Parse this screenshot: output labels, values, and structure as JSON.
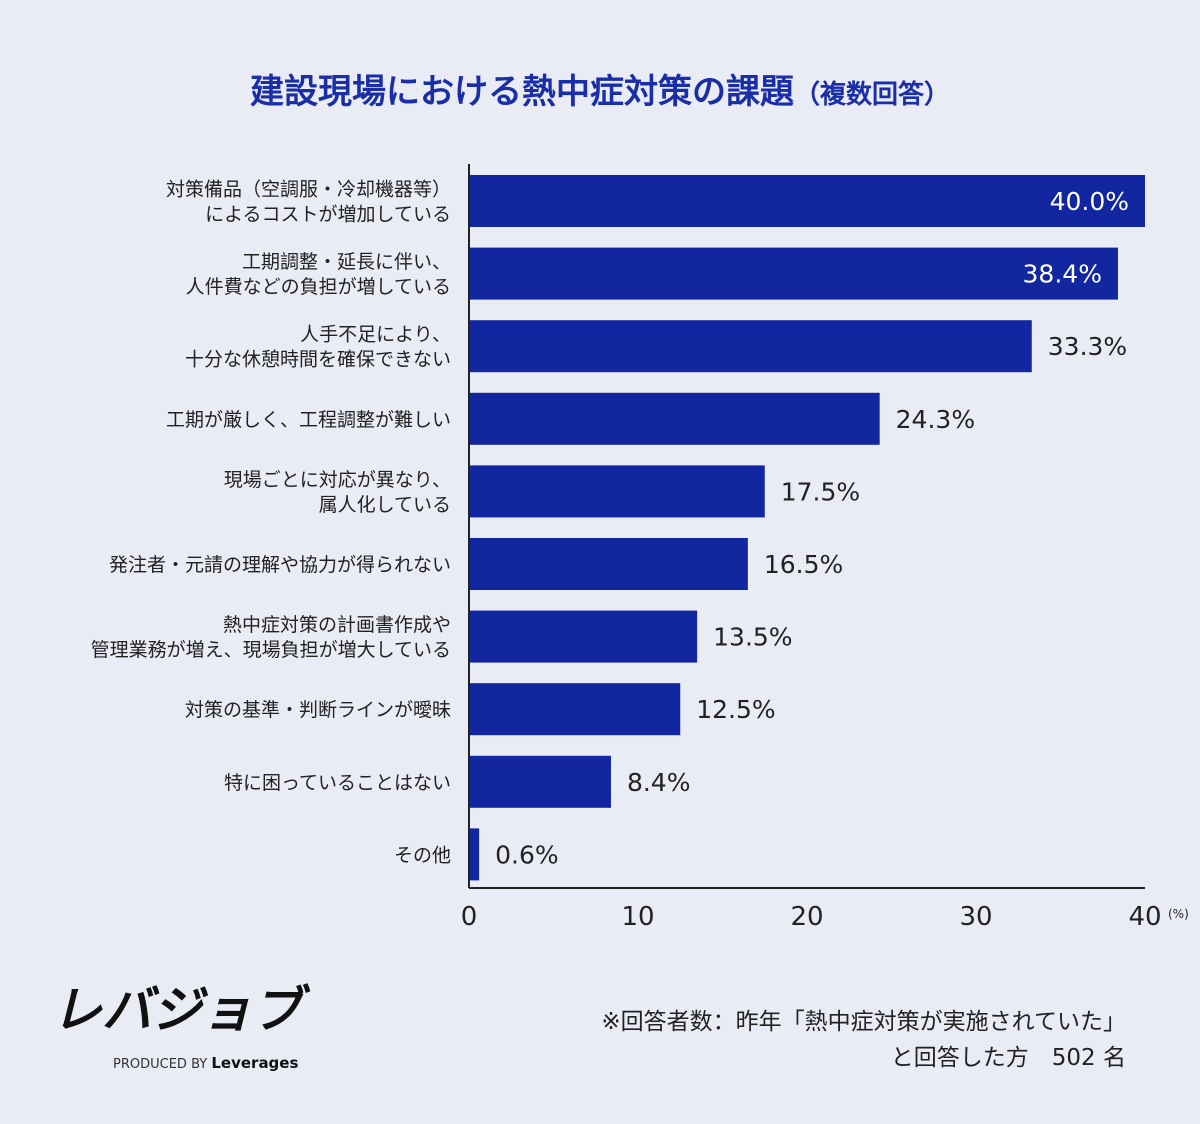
{
  "chart_data": {
    "type": "bar",
    "orientation": "horizontal",
    "title": "建設現場における熱中症対策の課題",
    "subtitle": "（複数回答）",
    "categories": [
      [
        "対策備品（空調服・冷却機器等）",
        "によるコストが増加している"
      ],
      [
        "工期調整・延長に伴い、",
        "人件費などの負担が増している"
      ],
      [
        "人手不足により、",
        "十分な休憩時間を確保できない"
      ],
      [
        "工期が厳しく、工程調整が難しい"
      ],
      [
        "現場ごとに対応が異なり、",
        "属人化している"
      ],
      [
        "発注者・元請の理解や協力が得られない"
      ],
      [
        "熱中症対策の計画書作成や",
        "管理業務が増え、現場負担が増大している"
      ],
      [
        "対策の基準・判断ラインが曖昧"
      ],
      [
        "特に困っていることはない"
      ],
      [
        "その他"
      ]
    ],
    "values": [
      40.0,
      38.4,
      33.3,
      24.3,
      17.5,
      16.5,
      13.5,
      12.5,
      8.4,
      0.6
    ],
    "value_labels": [
      "40.0%",
      "38.4%",
      "33.3%",
      "24.3%",
      "17.5%",
      "16.5%",
      "13.5%",
      "12.5%",
      "8.4%",
      "0.6%"
    ],
    "xlim": [
      0,
      40
    ],
    "xticks": [
      "0",
      "10",
      "20",
      "30",
      "40"
    ],
    "xunit": "(%)",
    "grid": false,
    "bar_color": "#1226a0",
    "title_color": "#1a2ea8"
  },
  "footer": {
    "logo": "レバジョブ",
    "produced_by": "PRODUCED BY",
    "brand": "Leverages",
    "note_line1": "※回答者数：昨年「熱中症対策が実施されていた」",
    "note_line2": "と回答した方　502 名"
  }
}
